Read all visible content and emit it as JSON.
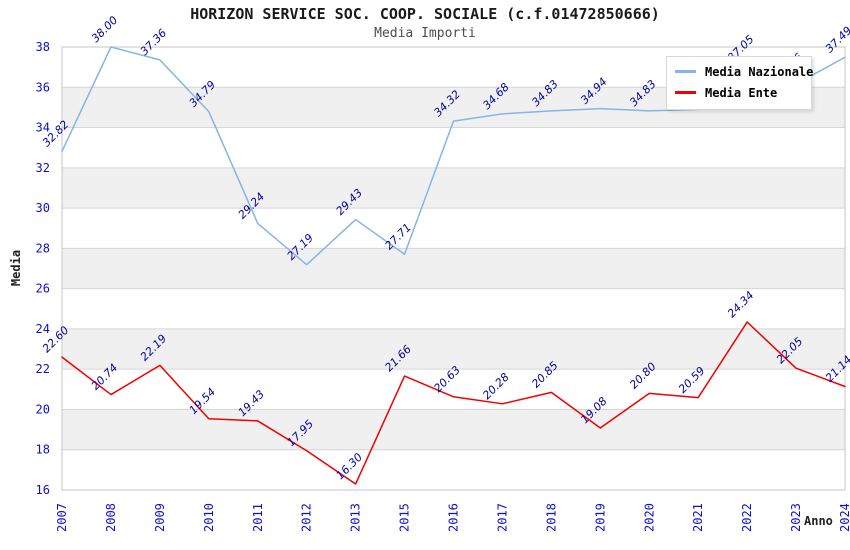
{
  "chart_data": {
    "type": "line",
    "title": "HORIZON SERVICE SOC. COOP. SOCIALE (c.f.01472850666)",
    "subtitle": "Media Importi",
    "xlabel": "Anno",
    "ylabel": "Media",
    "categories": [
      "2007",
      "2008",
      "2009",
      "2010",
      "2011",
      "2012",
      "2013",
      "2015",
      "2016",
      "2017",
      "2018",
      "2019",
      "2020",
      "2021",
      "2022",
      "2023",
      "2024"
    ],
    "ylim": [
      16,
      38
    ],
    "yticks": [
      16,
      18,
      20,
      22,
      24,
      26,
      28,
      30,
      32,
      34,
      36,
      38
    ],
    "grid": "horizontal-only",
    "legend_position": "top-right-overlay",
    "series": [
      {
        "name": "Media Nazionale",
        "color": "#85b5e6",
        "values": [
          32.82,
          38.0,
          37.36,
          34.79,
          29.24,
          27.19,
          29.43,
          27.71,
          34.32,
          34.68,
          34.83,
          34.94,
          34.83,
          34.9,
          37.05,
          36.16,
          37.49
        ]
      },
      {
        "name": "Media Ente",
        "color": "#f20000",
        "values": [
          22.6,
          20.74,
          22.19,
          19.54,
          19.43,
          17.95,
          16.3,
          21.66,
          20.63,
          20.28,
          20.85,
          19.08,
          20.8,
          20.59,
          24.34,
          22.05,
          21.14
        ]
      }
    ],
    "colors": {
      "band_fill": "#f0f0f0",
      "grid_line": "#d6d6d6",
      "plot_border": "#c6c6c6",
      "tick_label": "#0f0fd0",
      "point_label": "#0000a0",
      "title": "#1a1a1a",
      "subtitle": "#4d4d4d"
    }
  }
}
